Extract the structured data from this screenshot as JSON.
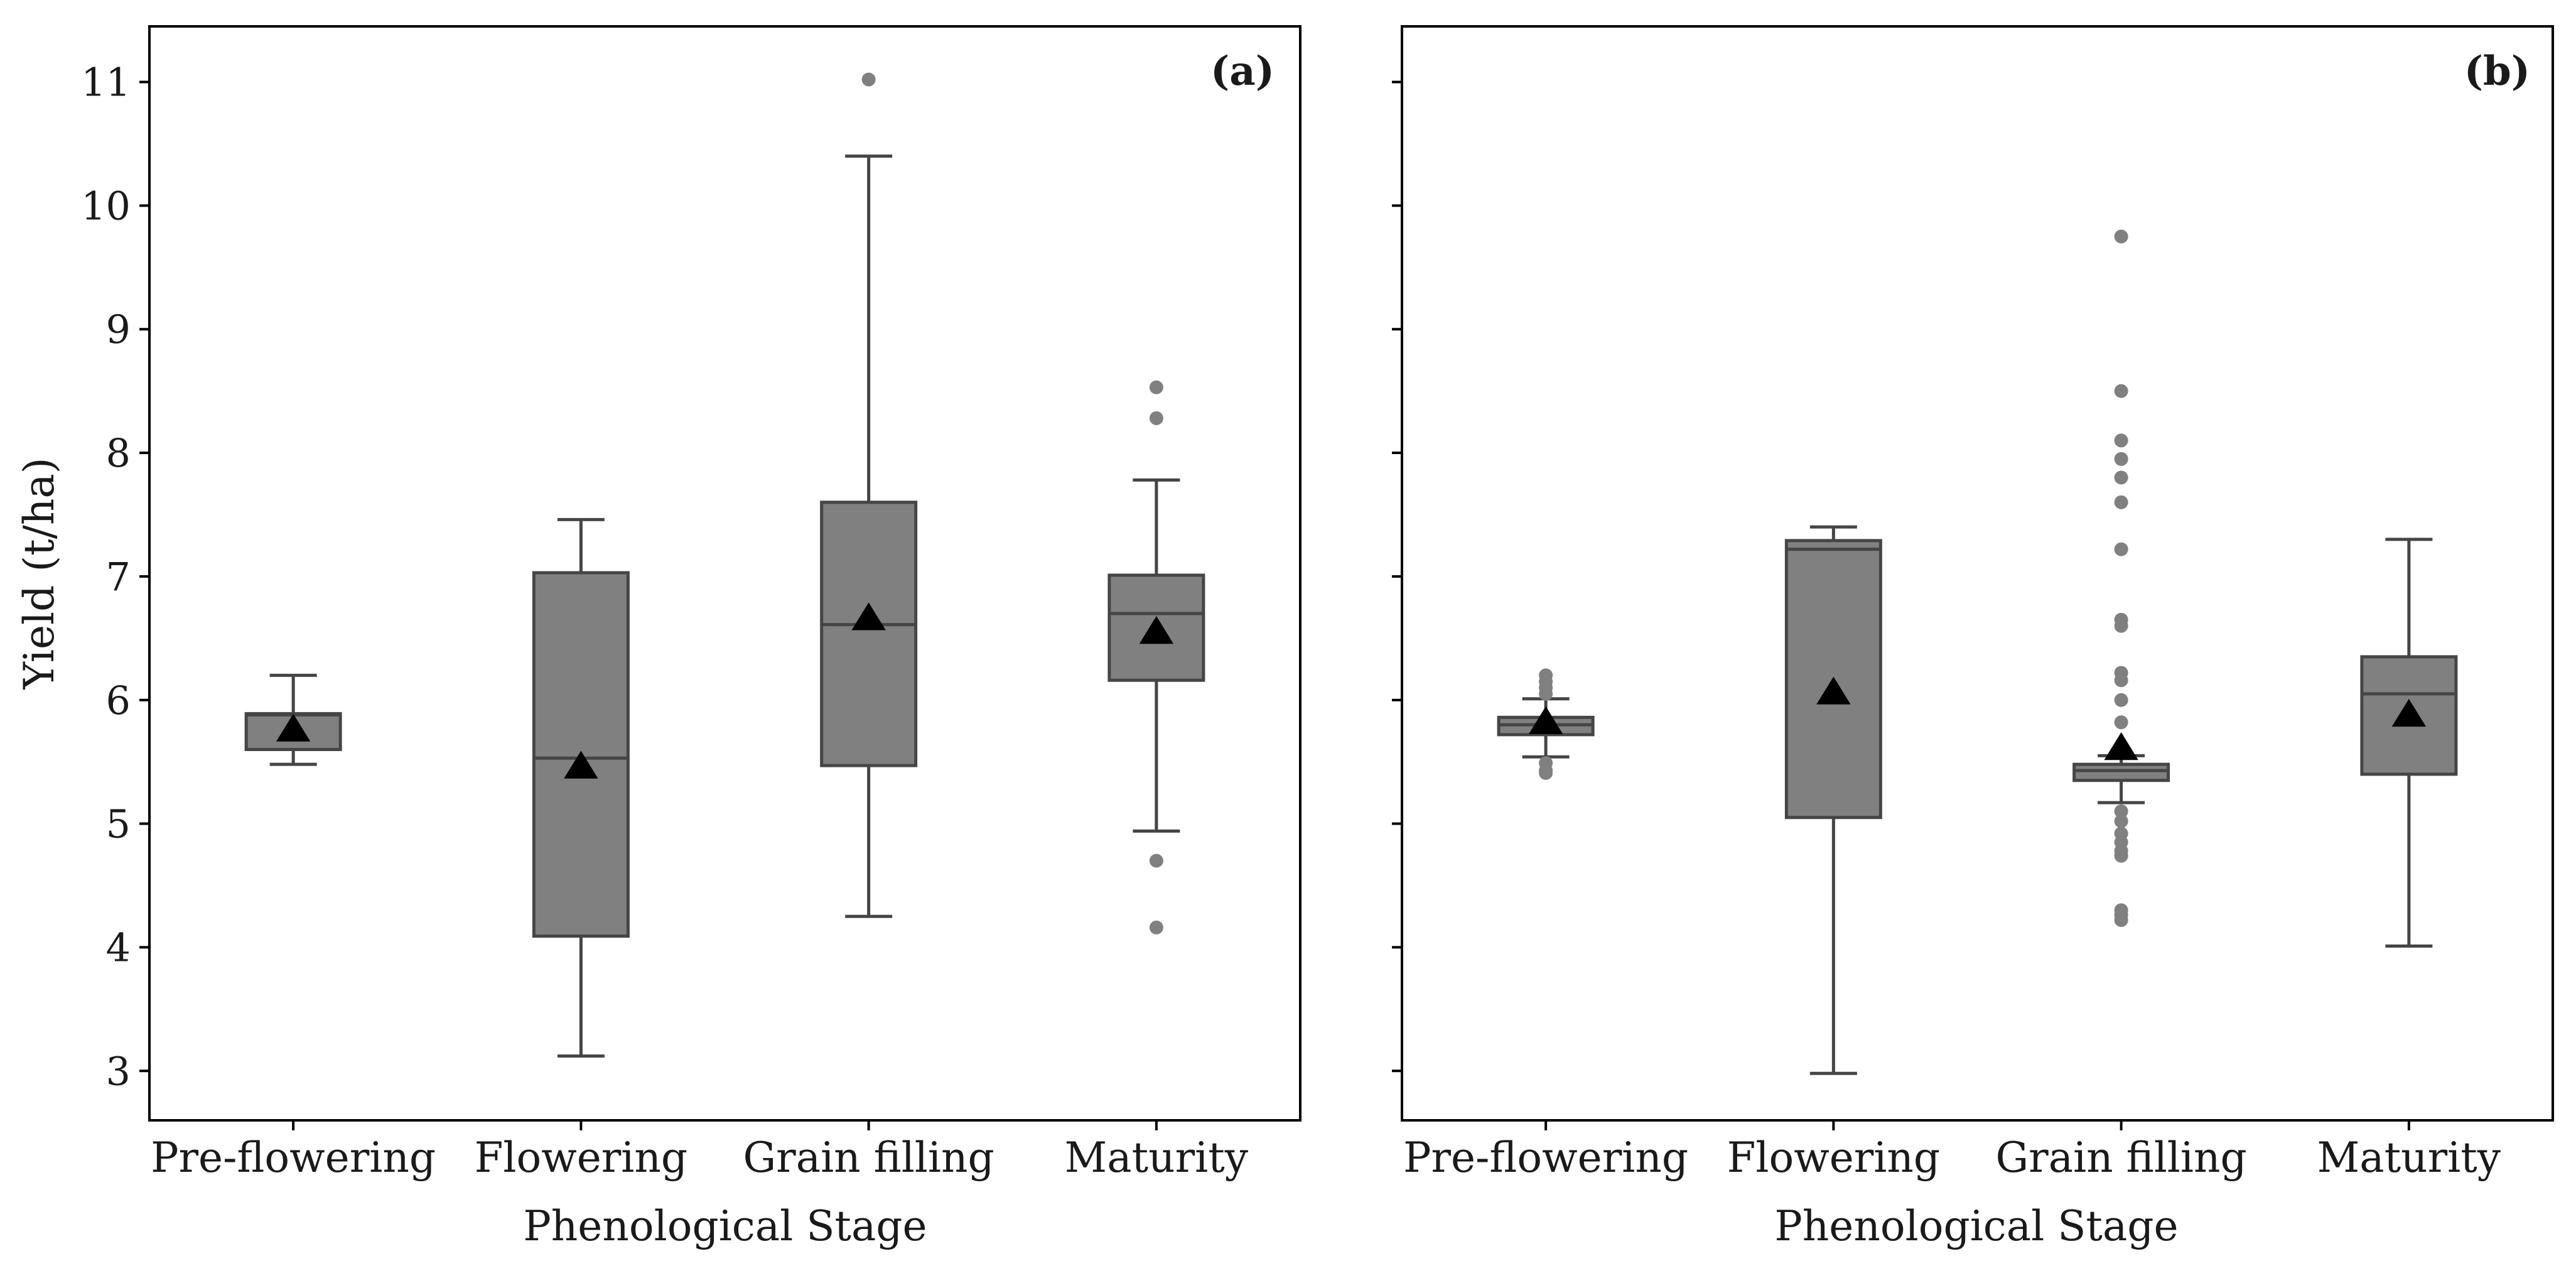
{
  "chart_data": [
    {
      "type": "box",
      "panel_label": "(a)",
      "xlabel": "Phenological Stage",
      "ylabel": "Yield (t/ha)",
      "ylim": [
        2.6,
        11.45
      ],
      "yticks": [
        "3",
        "4",
        "5",
        "6",
        "7",
        "8",
        "9",
        "10",
        "11"
      ],
      "categories": [
        "Pre-flowering",
        "Flowering",
        "Grain filling",
        "Maturity"
      ],
      "boxes": [
        {
          "whisker_low": 5.48,
          "q1": 5.6,
          "median": 5.88,
          "q3": 5.89,
          "whisker_high": 6.2,
          "mean": 5.76,
          "outliers": []
        },
        {
          "whisker_low": 3.12,
          "q1": 4.09,
          "median": 5.53,
          "q3": 7.03,
          "whisker_high": 7.46,
          "mean": 5.46,
          "outliers": []
        },
        {
          "whisker_low": 4.25,
          "q1": 5.47,
          "median": 6.61,
          "q3": 7.6,
          "whisker_high": 10.4,
          "mean": 6.66,
          "outliers": [
            11.02
          ]
        },
        {
          "whisker_low": 4.94,
          "q1": 6.16,
          "median": 6.7,
          "q3": 7.01,
          "whisker_high": 7.78,
          "mean": 6.55,
          "outliers": [
            8.53,
            8.28,
            4.7,
            4.16
          ]
        }
      ]
    },
    {
      "type": "box",
      "panel_label": "(b)",
      "xlabel": "Phenological Stage",
      "ylabel": "",
      "ylim": [
        2.6,
        11.45
      ],
      "categories": [
        "Pre-flowering",
        "Flowering",
        "Grain filling",
        "Maturity"
      ],
      "boxes": [
        {
          "whisker_low": 5.54,
          "q1": 5.72,
          "median": 5.8,
          "q3": 5.86,
          "whisker_high": 6.01,
          "mean": 5.82,
          "outliers": [
            6.2,
            6.15,
            6.1,
            6.05,
            5.49,
            5.43,
            5.41
          ]
        },
        {
          "whisker_low": 2.98,
          "q1": 5.05,
          "median": 7.22,
          "q3": 7.29,
          "whisker_high": 7.4,
          "mean": 6.06,
          "outliers": []
        },
        {
          "whisker_low": 5.17,
          "q1": 5.35,
          "median": 5.43,
          "q3": 5.48,
          "whisker_high": 5.55,
          "mean": 5.61,
          "outliers": [
            9.75,
            8.5,
            8.1,
            7.95,
            7.8,
            7.6,
            7.22,
            6.65,
            6.6,
            6.22,
            6.16,
            6.0,
            5.82,
            5.1,
            5.02,
            4.92,
            4.85,
            4.78,
            4.74,
            4.3,
            4.26,
            4.22
          ]
        },
        {
          "whisker_low": 4.01,
          "q1": 5.4,
          "median": 6.05,
          "q3": 6.35,
          "whisker_high": 7.3,
          "mean": 5.88,
          "outliers": []
        }
      ]
    }
  ],
  "colors": {
    "box_fill": "#808080",
    "box_edge": "#454545",
    "outlier": "#808080",
    "mean_marker": "#000000",
    "axis": "#000000"
  }
}
